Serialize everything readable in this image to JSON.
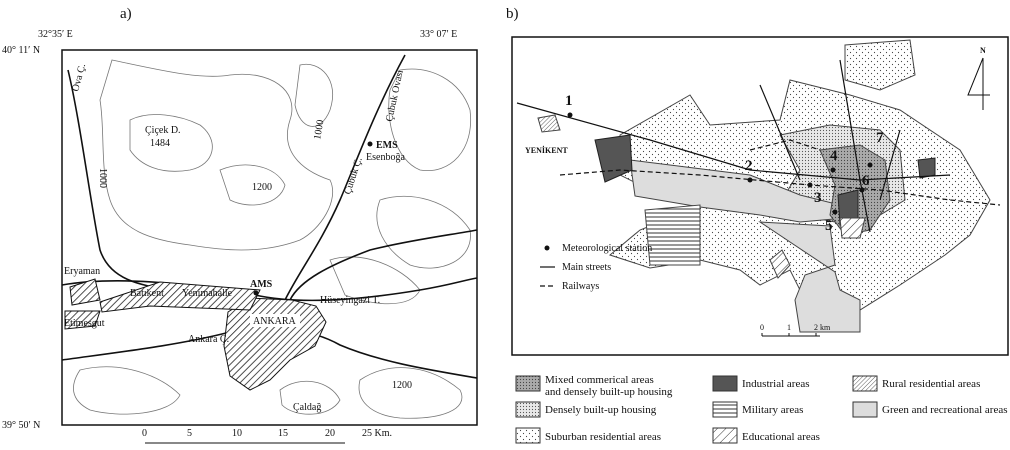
{
  "panel_a": {
    "label": "a)",
    "lon_west": "32°35′ E",
    "lon_east": "33° 07′ E",
    "lat_north": "40° 11′ N",
    "lat_south": "39° 50′ N",
    "places": [
      "Ova Ç.",
      "Çiçek D.",
      "1484",
      "Çubuk Ç.",
      "Çubuk Ovası",
      "EMS",
      "Esenboğa",
      "Eryaman",
      "Batıkent",
      "Yenimahalle",
      "AMS",
      "Hüseyingazi T.",
      "ANKARA",
      "Etimesgut",
      "Ankara Ç.",
      "Çaldağ"
    ],
    "contour_labels": [
      "1000",
      "1200",
      "1000",
      "1200"
    ],
    "scale": [
      "0",
      "5",
      "10",
      "15",
      "20",
      "25 Km."
    ]
  },
  "panel_b": {
    "label": "b)",
    "north": "N",
    "stations": [
      "1",
      "2",
      "3",
      "4",
      "5",
      "6",
      "7"
    ],
    "place": "YENİKENT",
    "key": [
      "Meteorological station",
      "Main streets",
      "Railways"
    ],
    "scale": [
      "0",
      "1",
      "2 km"
    ],
    "legend": [
      [
        "Mixed commerical areas",
        "and densely built-up housing"
      ],
      [
        "Densely built-up housing"
      ],
      [
        "Suburban residential areas"
      ],
      [
        "Industrial areas"
      ],
      [
        "Military areas"
      ],
      [
        "Educational areas"
      ],
      [
        "Rural residential areas"
      ],
      [
        "Green and recreational areas"
      ]
    ]
  }
}
